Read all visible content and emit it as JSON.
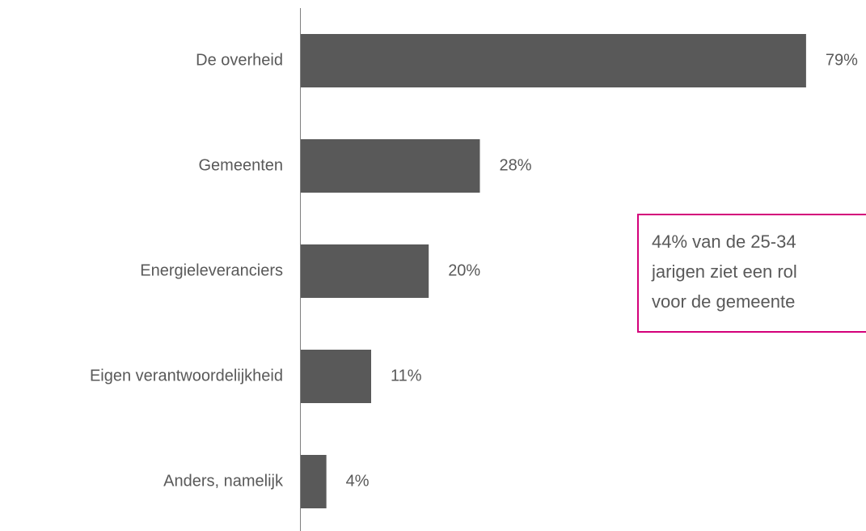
{
  "chart_data": {
    "type": "bar",
    "orientation": "horizontal",
    "categories": [
      "De overheid",
      "Gemeenten",
      "Energieleveranciers",
      "Eigen verantwoordelijkheid",
      "Anders, namelijk"
    ],
    "values": [
      79,
      28,
      20,
      11,
      4
    ],
    "value_labels": [
      "79%",
      "28%",
      "20%",
      "11%",
      "4%"
    ],
    "color": "#595959",
    "annotation": [
      "44% van de 25-34",
      "jarigen ziet een rol",
      "voor de gemeente"
    ],
    "annotation_color": "#d4007a"
  }
}
